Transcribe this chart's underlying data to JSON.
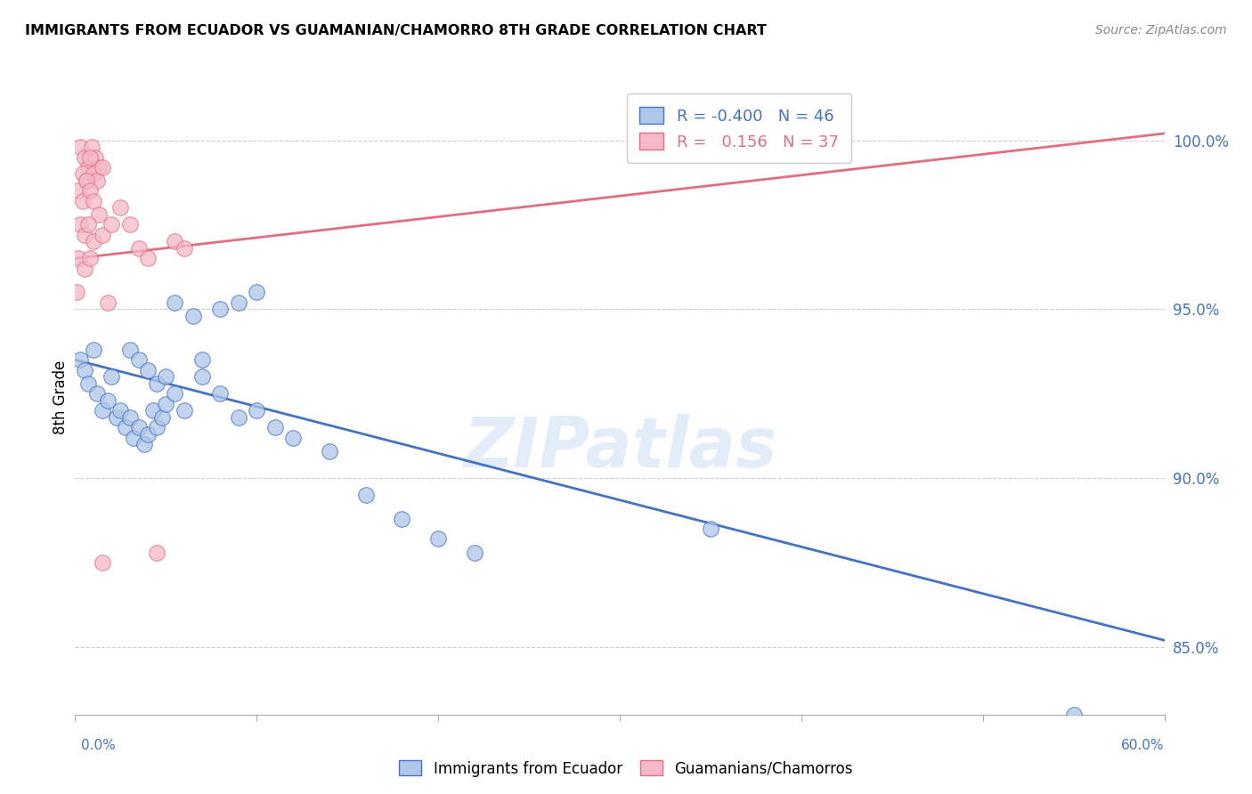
{
  "title": "IMMIGRANTS FROM ECUADOR VS GUAMANIAN/CHAMORRO 8TH GRADE CORRELATION CHART",
  "source": "Source: ZipAtlas.com",
  "ylabel": "8th Grade",
  "y_ticks": [
    85.0,
    90.0,
    95.0,
    100.0
  ],
  "y_tick_labels": [
    "85.0%",
    "90.0%",
    "95.0%",
    "100.0%"
  ],
  "x_min": 0.0,
  "x_max": 60.0,
  "y_min": 83.0,
  "y_max": 101.8,
  "blue_color": "#aec6e8",
  "pink_color": "#f5b8c8",
  "blue_line_color": "#4472c4",
  "pink_line_color": "#e07080",
  "legend_blue_label": "R = -0.400   N = 46",
  "legend_pink_label": "R =   0.156   N = 37",
  "watermark": "ZIPatlas",
  "blue_scatter": [
    [
      0.3,
      93.5
    ],
    [
      0.5,
      93.2
    ],
    [
      0.7,
      92.8
    ],
    [
      1.0,
      93.8
    ],
    [
      1.2,
      92.5
    ],
    [
      1.5,
      92.0
    ],
    [
      1.8,
      92.3
    ],
    [
      2.0,
      93.0
    ],
    [
      2.3,
      91.8
    ],
    [
      2.5,
      92.0
    ],
    [
      2.8,
      91.5
    ],
    [
      3.0,
      91.8
    ],
    [
      3.2,
      91.2
    ],
    [
      3.5,
      91.5
    ],
    [
      3.8,
      91.0
    ],
    [
      4.0,
      91.3
    ],
    [
      4.3,
      92.0
    ],
    [
      4.5,
      91.5
    ],
    [
      4.8,
      91.8
    ],
    [
      5.0,
      92.2
    ],
    [
      5.5,
      95.2
    ],
    [
      6.5,
      94.8
    ],
    [
      7.0,
      93.5
    ],
    [
      8.0,
      95.0
    ],
    [
      9.0,
      95.2
    ],
    [
      10.0,
      95.5
    ],
    [
      3.0,
      93.8
    ],
    [
      3.5,
      93.5
    ],
    [
      4.0,
      93.2
    ],
    [
      4.5,
      92.8
    ],
    [
      5.0,
      93.0
    ],
    [
      5.5,
      92.5
    ],
    [
      6.0,
      92.0
    ],
    [
      7.0,
      93.0
    ],
    [
      8.0,
      92.5
    ],
    [
      9.0,
      91.8
    ],
    [
      10.0,
      92.0
    ],
    [
      11.0,
      91.5
    ],
    [
      12.0,
      91.2
    ],
    [
      14.0,
      90.8
    ],
    [
      16.0,
      89.5
    ],
    [
      18.0,
      88.8
    ],
    [
      20.0,
      88.2
    ],
    [
      22.0,
      87.8
    ],
    [
      35.0,
      88.5
    ],
    [
      55.0,
      83.0
    ]
  ],
  "pink_scatter": [
    [
      0.3,
      99.8
    ],
    [
      0.5,
      99.5
    ],
    [
      0.7,
      99.2
    ],
    [
      0.9,
      99.8
    ],
    [
      1.1,
      99.5
    ],
    [
      1.3,
      99.2
    ],
    [
      0.4,
      99.0
    ],
    [
      0.6,
      98.8
    ],
    [
      0.8,
      99.5
    ],
    [
      1.0,
      99.0
    ],
    [
      1.2,
      98.8
    ],
    [
      1.5,
      99.2
    ],
    [
      0.2,
      98.5
    ],
    [
      0.4,
      98.2
    ],
    [
      0.6,
      98.8
    ],
    [
      0.8,
      98.5
    ],
    [
      1.0,
      98.2
    ],
    [
      1.3,
      97.8
    ],
    [
      0.3,
      97.5
    ],
    [
      0.5,
      97.2
    ],
    [
      0.7,
      97.5
    ],
    [
      1.0,
      97.0
    ],
    [
      1.5,
      97.2
    ],
    [
      2.0,
      97.5
    ],
    [
      0.2,
      96.5
    ],
    [
      0.5,
      96.2
    ],
    [
      0.8,
      96.5
    ],
    [
      2.5,
      98.0
    ],
    [
      3.0,
      97.5
    ],
    [
      3.5,
      96.8
    ],
    [
      4.0,
      96.5
    ],
    [
      5.5,
      97.0
    ],
    [
      6.0,
      96.8
    ],
    [
      0.1,
      95.5
    ],
    [
      1.8,
      95.2
    ],
    [
      4.5,
      87.8
    ],
    [
      1.5,
      87.5
    ]
  ],
  "blue_line_x": [
    0.0,
    60.0
  ],
  "blue_line_y": [
    93.5,
    85.2
  ],
  "pink_line_x": [
    0.0,
    60.0
  ],
  "pink_line_y": [
    96.5,
    100.2
  ]
}
